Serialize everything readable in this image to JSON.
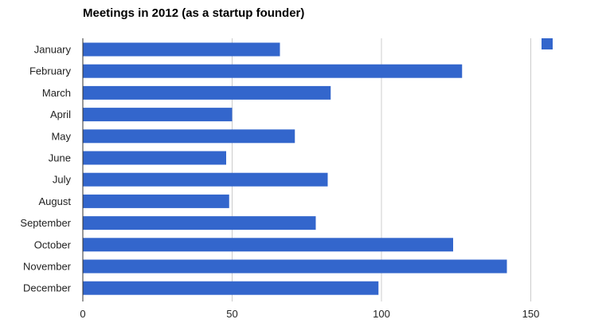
{
  "chart_data": {
    "type": "bar",
    "orientation": "horizontal",
    "title": "Meetings in 2012 (as a startup founder)",
    "xlabel": "",
    "ylabel": "",
    "categories": [
      "January",
      "February",
      "March",
      "April",
      "May",
      "June",
      "July",
      "August",
      "September",
      "October",
      "November",
      "December"
    ],
    "series": [
      {
        "values": [
          66,
          127,
          83,
          50,
          71,
          48,
          82,
          49,
          78,
          124,
          142,
          99
        ]
      }
    ],
    "xlim": [
      0,
      165
    ],
    "xticks": [
      0,
      50,
      100,
      150
    ],
    "grid": true,
    "legend": "top-right",
    "colors": {
      "bar": "#3366cc",
      "grid": "#cccccc",
      "axis": "#333333",
      "text": "#222222"
    }
  }
}
